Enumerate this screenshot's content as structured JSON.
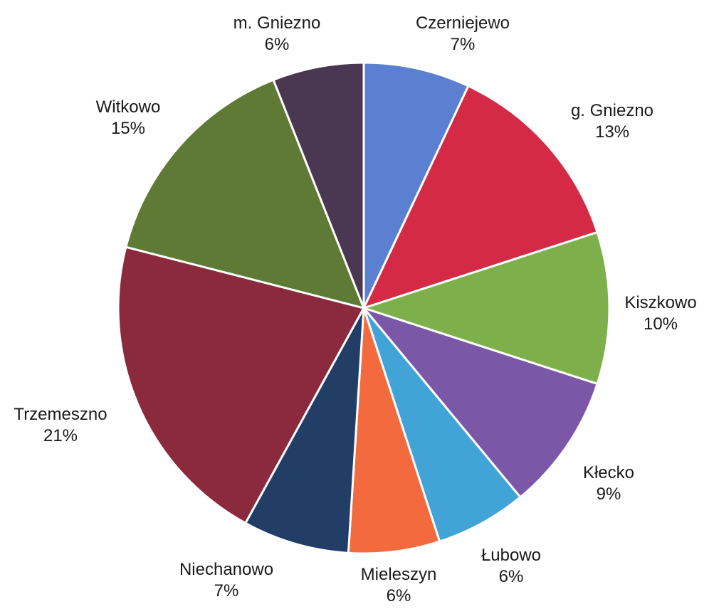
{
  "chart_data": {
    "type": "pie",
    "title": "",
    "slices": [
      {
        "name": "Czerniejewo",
        "value": 7,
        "label": "7%",
        "color": "#5B80D2"
      },
      {
        "name": "g. Gniezno",
        "value": 13,
        "label": "13%",
        "color": "#D42A45"
      },
      {
        "name": "Kiszkowo",
        "value": 10,
        "label": "10%",
        "color": "#7DB04A"
      },
      {
        "name": "Kłecko",
        "value": 9,
        "label": "9%",
        "color": "#7B57A8"
      },
      {
        "name": "Łubowo",
        "value": 6,
        "label": "6%",
        "color": "#42A4D6"
      },
      {
        "name": "Mieleszyn",
        "value": 6,
        "label": "6%",
        "color": "#F26A3E"
      },
      {
        "name": "Niechanowo",
        "value": 7,
        "label": "7%",
        "color": "#223E66"
      },
      {
        "name": "Trzemeszno",
        "value": 21,
        "label": "21%",
        "color": "#8A2A3C"
      },
      {
        "name": "Witkowo",
        "value": 15,
        "label": "15%",
        "color": "#5E7A34"
      },
      {
        "name": "m. Gniezno",
        "value": 6,
        "label": "6%",
        "color": "#4A3752"
      }
    ]
  }
}
